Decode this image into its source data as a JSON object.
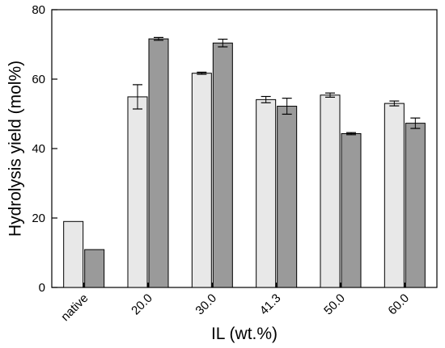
{
  "chart_data": {
    "type": "bar",
    "title": "",
    "xlabel": "IL (wt.%)",
    "ylabel": "Hydrolysis yield (mol%)",
    "ylim": [
      0,
      80
    ],
    "yticks": [
      "0",
      "20",
      "40",
      "60",
      "80"
    ],
    "categories": [
      "native",
      "20.0",
      "30.0",
      "41.3",
      "50.0",
      "60.0"
    ],
    "grid": false,
    "legend": "none",
    "series": [
      {
        "color": "#e8e8e8",
        "values": [
          19.0,
          54.9,
          61.7,
          54.1,
          55.4,
          53.0
        ],
        "errors": [
          0.0,
          3.5,
          0.3,
          0.9,
          0.6,
          0.7
        ]
      },
      {
        "color": "#9a9a9a",
        "values": [
          10.9,
          71.6,
          70.4,
          52.2,
          44.3,
          47.3
        ],
        "errors": [
          0.0,
          0.4,
          1.1,
          2.3,
          0.3,
          1.5
        ]
      }
    ]
  }
}
